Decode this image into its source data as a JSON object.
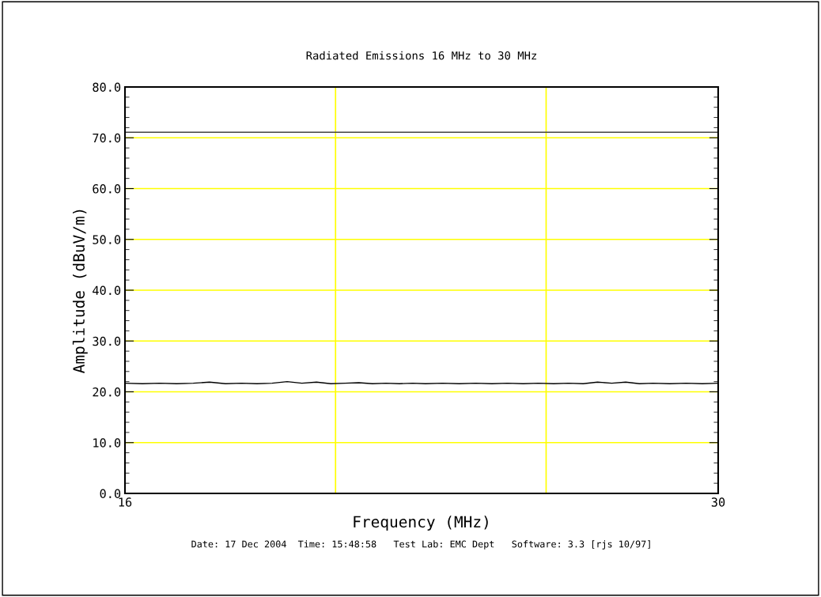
{
  "chart_data": {
    "type": "line",
    "title": "Radiated Emissions 16 MHz to 30 MHz",
    "xlabel": "Frequency (MHz)",
    "ylabel": "Amplitude (dBuV/m)",
    "annotations": [
      "Date: 17 Dec 2004  Time: 15:48:58   Test Lab: EMC Dept   Software: 3.3 [rjs 10/97]"
    ],
    "x": [
      16,
      16.3,
      16.6,
      16.9,
      17.2,
      17.5,
      17.8,
      18.1,
      18.4,
      18.7,
      19.0,
      19.3,
      19.6,
      19.9,
      20.2,
      20.5,
      20.8,
      21.1,
      21.4,
      21.7,
      22.0,
      22.4,
      22.8,
      23.2,
      23.6,
      24.0,
      24.4,
      24.8,
      25.2,
      25.6,
      26.0,
      26.4,
      26.8,
      27.2,
      27.6,
      28.0,
      28.5,
      29.0,
      29.5,
      30
    ],
    "series": [
      {
        "color": "#000000",
        "values": [
          21.7,
          21.6,
          21.7,
          21.6,
          21.7,
          21.9,
          21.6,
          21.7,
          21.6,
          21.7,
          22.0,
          21.7,
          21.9,
          21.6,
          21.7,
          21.8,
          21.6,
          21.7,
          21.6,
          21.7,
          21.6,
          21.7,
          21.6,
          21.7,
          21.6,
          21.7,
          21.6,
          21.7,
          21.6,
          21.7,
          21.6,
          21.9,
          21.7,
          21.9,
          21.6,
          21.7,
          21.6,
          21.7,
          21.6,
          21.7
        ]
      }
    ],
    "ref_lines": [
      {
        "axis": "y",
        "value": 71.1,
        "color": "#444444"
      }
    ],
    "log": "x",
    "xlim": [
      16,
      30
    ],
    "xticks": [
      16,
      {
        "value": 20,
        "label": null
      },
      {
        "value": 25,
        "label": null
      },
      30
    ],
    "ylim": [
      0,
      80
    ],
    "yticks": [
      {
        "value": 0,
        "label": "0.0"
      },
      {
        "value": 10,
        "label": "10.0"
      },
      {
        "value": 20,
        "label": "20.0"
      },
      {
        "value": 30,
        "label": "30.0"
      },
      {
        "value": 40,
        "label": "40.0"
      },
      {
        "value": 50,
        "label": "50.0"
      },
      {
        "value": 60,
        "label": "60.0"
      },
      {
        "value": 70,
        "label": "70.0"
      },
      {
        "value": 80,
        "label": "80.0"
      }
    ],
    "grid": true,
    "marker": "none",
    "line_style": "solid"
  }
}
